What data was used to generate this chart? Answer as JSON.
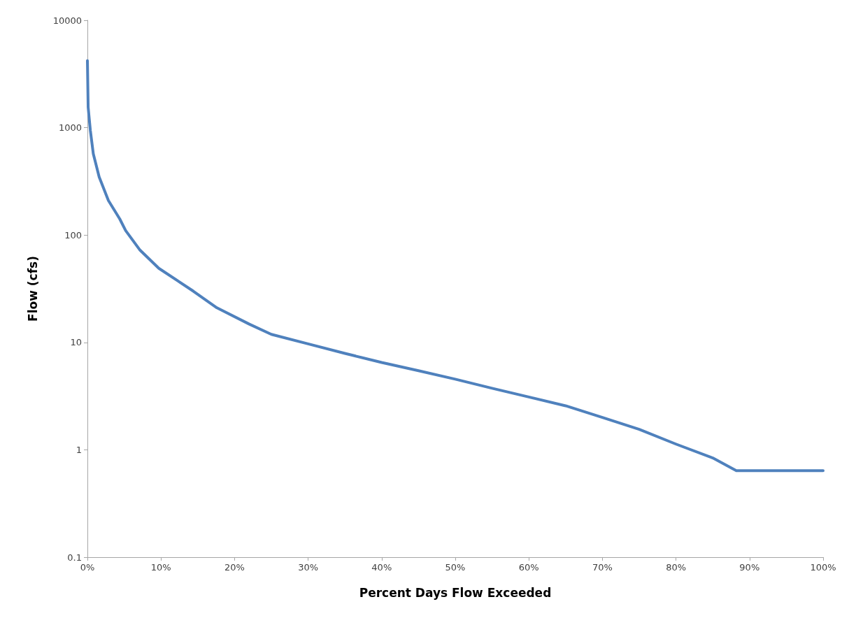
{
  "chart_data": {
    "type": "line",
    "xlabel": "Percent Days Flow Exceeded",
    "ylabel": "Flow (cfs)",
    "log": "y",
    "grid": false,
    "marker": "none",
    "line_style": "solid",
    "x": [
      0,
      0.1,
      0.4,
      0.8,
      1.6,
      2.85,
      4.4,
      5.2,
      7.1,
      9.7,
      14.4,
      17.6,
      22,
      25,
      30,
      35,
      40,
      45,
      50,
      55,
      60,
      65,
      70,
      75,
      80,
      85,
      88.2,
      100
    ],
    "series": [
      {
        "color": "#4f81bd",
        "values": [
          4200,
          1550,
          940,
          570,
          347,
          210,
          141,
          110,
          73,
          49,
          30,
          21,
          14.8,
          11.9,
          9.7,
          7.9,
          6.5,
          5.45,
          4.55,
          3.74,
          3.1,
          2.57,
          2.0,
          1.55,
          1.13,
          0.84,
          0.64,
          0.64
        ]
      }
    ],
    "xlim": [
      0,
      100
    ],
    "xticks": [
      {
        "value": 0,
        "label": "0%"
      },
      {
        "value": 10,
        "label": "10%"
      },
      {
        "value": 20,
        "label": "20%"
      },
      {
        "value": 30,
        "label": "30%"
      },
      {
        "value": 40,
        "label": "40%"
      },
      {
        "value": 50,
        "label": "50%"
      },
      {
        "value": 60,
        "label": "60%"
      },
      {
        "value": 70,
        "label": "70%"
      },
      {
        "value": 80,
        "label": "80%"
      },
      {
        "value": 90,
        "label": "90%"
      },
      {
        "value": 100,
        "label": "100%"
      }
    ],
    "ylim": [
      0.1,
      10000
    ],
    "yticks": [
      0.1,
      1,
      10,
      100,
      1000,
      10000
    ]
  }
}
